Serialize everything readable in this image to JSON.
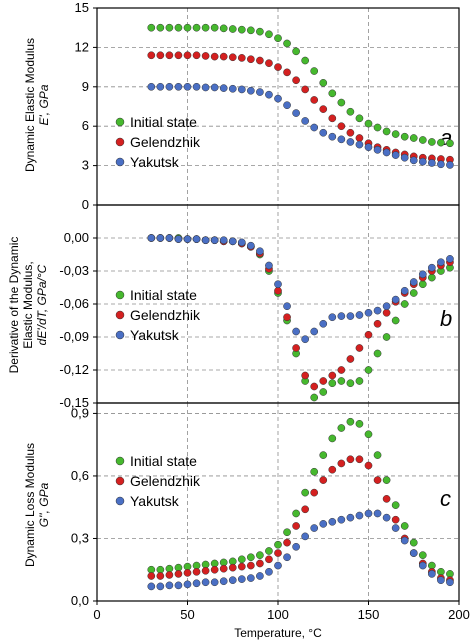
{
  "colors": {
    "initial": "#46b82e",
    "gelendzhik": "#d42020",
    "yakutsk": "#4a6fc4",
    "grid": "#8c8c8c",
    "frame": "#000000"
  },
  "chart_data": [
    {
      "type": "scatter",
      "panel_label": "a",
      "ylabel_lines": [
        "Dynamic Elastic Modulus",
        "E', GPa"
      ],
      "xlim": [
        0,
        200
      ],
      "ylim": [
        0,
        15
      ],
      "yticks": [
        "0",
        "3",
        "6",
        "9",
        "12",
        "15"
      ],
      "ytick_values": [
        0,
        3,
        6,
        9,
        12,
        15
      ],
      "grid": true,
      "legend": "left",
      "series": [
        {
          "name": "Initial state",
          "color_key": "initial",
          "x": [
            30,
            35,
            40,
            45,
            50,
            55,
            60,
            65,
            70,
            75,
            80,
            85,
            90,
            95,
            100,
            105,
            110,
            115,
            120,
            125,
            130,
            135,
            140,
            145,
            150,
            155,
            160,
            165,
            170,
            175,
            180,
            185,
            190,
            195
          ],
          "y": [
            13.5,
            13.5,
            13.5,
            13.5,
            13.5,
            13.5,
            13.5,
            13.5,
            13.45,
            13.4,
            13.35,
            13.3,
            13.2,
            13.0,
            12.7,
            12.3,
            11.7,
            11.0,
            10.2,
            9.3,
            8.5,
            7.8,
            7.1,
            6.6,
            6.2,
            5.9,
            5.6,
            5.4,
            5.2,
            5.1,
            4.95,
            4.8,
            4.75,
            4.7
          ]
        },
        {
          "name": "Gelendzhik",
          "color_key": "gelendzhik",
          "x": [
            30,
            35,
            40,
            45,
            50,
            55,
            60,
            65,
            70,
            75,
            80,
            85,
            90,
            95,
            100,
            105,
            110,
            115,
            120,
            125,
            130,
            135,
            140,
            145,
            150,
            155,
            160,
            165,
            170,
            175,
            180,
            185,
            190,
            195
          ],
          "y": [
            11.4,
            11.4,
            11.4,
            11.4,
            11.4,
            11.4,
            11.35,
            11.3,
            11.3,
            11.25,
            11.2,
            11.1,
            11.0,
            10.8,
            10.5,
            10.1,
            9.5,
            8.8,
            8.0,
            7.3,
            6.6,
            6.0,
            5.5,
            5.1,
            4.7,
            4.4,
            4.2,
            4.0,
            3.85,
            3.7,
            3.6,
            3.55,
            3.5,
            3.45
          ]
        },
        {
          "name": "Yakutsk",
          "color_key": "yakutsk",
          "x": [
            30,
            35,
            40,
            45,
            50,
            55,
            60,
            65,
            70,
            75,
            80,
            85,
            90,
            95,
            100,
            105,
            110,
            115,
            120,
            125,
            130,
            135,
            140,
            145,
            150,
            155,
            160,
            165,
            170,
            175,
            180,
            185,
            190,
            195
          ],
          "y": [
            9.0,
            9.0,
            9.0,
            9.0,
            9.0,
            9.0,
            8.95,
            8.95,
            8.9,
            8.85,
            8.8,
            8.7,
            8.6,
            8.4,
            8.1,
            7.6,
            7.0,
            6.4,
            5.9,
            5.5,
            5.2,
            5.0,
            4.8,
            4.6,
            4.4,
            4.2,
            4.0,
            3.8,
            3.6,
            3.4,
            3.3,
            3.2,
            3.1,
            3.05
          ]
        }
      ]
    },
    {
      "type": "scatter",
      "panel_label": "b",
      "ylabel_lines": [
        "Derivative of the Dynamic",
        "Elastic Modulus,",
        "dE'/dT, GPa/°C"
      ],
      "xlim": [
        0,
        200
      ],
      "ylim": [
        -0.15,
        0.03
      ],
      "yticks": [
        "0,00",
        "-0,03",
        "-0,06",
        "-0,09",
        "-0,12",
        "-0,15"
      ],
      "ytick_values": [
        0,
        -0.03,
        -0.06,
        -0.09,
        -0.12,
        -0.15
      ],
      "grid": true,
      "legend": "right",
      "series": [
        {
          "name": "Initial state",
          "color_key": "initial",
          "x": [
            30,
            35,
            40,
            45,
            50,
            55,
            60,
            65,
            70,
            75,
            80,
            85,
            90,
            95,
            100,
            105,
            110,
            115,
            120,
            125,
            130,
            135,
            140,
            145,
            150,
            155,
            160,
            165,
            170,
            175,
            180,
            185,
            190,
            195
          ],
          "y": [
            0.0,
            0.0,
            0.0,
            0.0,
            -0.001,
            -0.001,
            -0.002,
            -0.002,
            -0.003,
            -0.003,
            -0.005,
            -0.008,
            -0.015,
            -0.03,
            -0.05,
            -0.075,
            -0.105,
            -0.13,
            -0.145,
            -0.14,
            -0.132,
            -0.13,
            -0.132,
            -0.13,
            -0.12,
            -0.105,
            -0.09,
            -0.075,
            -0.06,
            -0.05,
            -0.042,
            -0.036,
            -0.03,
            -0.027
          ]
        },
        {
          "name": "Gelendzhik",
          "color_key": "gelendzhik",
          "x": [
            30,
            35,
            40,
            45,
            50,
            55,
            60,
            65,
            70,
            75,
            80,
            85,
            90,
            95,
            100,
            105,
            110,
            115,
            120,
            125,
            130,
            135,
            140,
            145,
            150,
            155,
            160,
            165,
            170,
            175,
            180,
            185,
            190,
            195
          ],
          "y": [
            0.0,
            0.0,
            0.0,
            -0.001,
            -0.001,
            -0.001,
            -0.002,
            -0.002,
            -0.003,
            -0.003,
            -0.005,
            -0.008,
            -0.014,
            -0.028,
            -0.048,
            -0.072,
            -0.1,
            -0.125,
            -0.135,
            -0.13,
            -0.125,
            -0.12,
            -0.11,
            -0.1,
            -0.088,
            -0.078,
            -0.068,
            -0.058,
            -0.05,
            -0.042,
            -0.036,
            -0.03,
            -0.025,
            -0.022
          ]
        },
        {
          "name": "Yakutsk",
          "color_key": "yakutsk",
          "x": [
            30,
            35,
            40,
            45,
            50,
            55,
            60,
            65,
            70,
            75,
            80,
            85,
            90,
            95,
            100,
            105,
            110,
            115,
            120,
            125,
            130,
            135,
            140,
            145,
            150,
            155,
            160,
            165,
            170,
            175,
            180,
            185,
            190,
            195
          ],
          "y": [
            0.0,
            0.0,
            0.0,
            -0.001,
            -0.001,
            -0.001,
            -0.002,
            -0.002,
            -0.002,
            -0.003,
            -0.004,
            -0.007,
            -0.012,
            -0.025,
            -0.042,
            -0.062,
            -0.085,
            -0.092,
            -0.085,
            -0.078,
            -0.072,
            -0.071,
            -0.071,
            -0.07,
            -0.068,
            -0.066,
            -0.062,
            -0.056,
            -0.048,
            -0.04,
            -0.033,
            -0.027,
            -0.022,
            -0.019
          ]
        }
      ]
    },
    {
      "type": "scatter",
      "panel_label": "c",
      "ylabel_lines": [
        "Dynamic Loss Modulus",
        "G'', GPa"
      ],
      "xlim": [
        0,
        200
      ],
      "ylim": [
        0,
        0.95
      ],
      "yticks": [
        "0,0",
        "0,3",
        "0,6",
        "0,9"
      ],
      "ytick_values": [
        0,
        0.3,
        0.6,
        0.9
      ],
      "xticks": [
        "0",
        "50",
        "100",
        "150",
        "200"
      ],
      "xtick_values": [
        0,
        50,
        100,
        150,
        200
      ],
      "xlabel": "Temperature, °C",
      "grid": true,
      "legend": "left",
      "series": [
        {
          "name": "Initial state",
          "color_key": "initial",
          "x": [
            30,
            35,
            40,
            45,
            50,
            55,
            60,
            65,
            70,
            75,
            80,
            85,
            90,
            95,
            100,
            105,
            110,
            115,
            120,
            125,
            130,
            135,
            140,
            145,
            150,
            155,
            160,
            165,
            170,
            175,
            180,
            185,
            190,
            195
          ],
          "y": [
            0.15,
            0.15,
            0.155,
            0.16,
            0.165,
            0.17,
            0.175,
            0.18,
            0.185,
            0.19,
            0.2,
            0.21,
            0.22,
            0.24,
            0.27,
            0.33,
            0.42,
            0.52,
            0.62,
            0.7,
            0.78,
            0.83,
            0.86,
            0.85,
            0.8,
            0.7,
            0.58,
            0.46,
            0.36,
            0.28,
            0.22,
            0.17,
            0.14,
            0.13
          ]
        },
        {
          "name": "Gelendzhik",
          "color_key": "gelendzhik",
          "x": [
            30,
            35,
            40,
            45,
            50,
            55,
            60,
            65,
            70,
            75,
            80,
            85,
            90,
            95,
            100,
            105,
            110,
            115,
            120,
            125,
            130,
            135,
            140,
            145,
            150,
            155,
            160,
            165,
            170,
            175,
            180,
            185,
            190,
            195
          ],
          "y": [
            0.12,
            0.12,
            0.125,
            0.13,
            0.135,
            0.14,
            0.145,
            0.15,
            0.155,
            0.16,
            0.165,
            0.17,
            0.18,
            0.2,
            0.23,
            0.28,
            0.36,
            0.44,
            0.52,
            0.58,
            0.63,
            0.66,
            0.68,
            0.68,
            0.65,
            0.58,
            0.49,
            0.39,
            0.3,
            0.23,
            0.18,
            0.14,
            0.11,
            0.1
          ]
        },
        {
          "name": "Yakutsk",
          "color_key": "yakutsk",
          "x": [
            30,
            35,
            40,
            45,
            50,
            55,
            60,
            65,
            70,
            75,
            80,
            85,
            90,
            95,
            100,
            105,
            110,
            115,
            120,
            125,
            130,
            135,
            140,
            145,
            150,
            155,
            160,
            165,
            170,
            175,
            180,
            185,
            190,
            195
          ],
          "y": [
            0.07,
            0.07,
            0.075,
            0.075,
            0.08,
            0.085,
            0.09,
            0.09,
            0.095,
            0.1,
            0.105,
            0.11,
            0.12,
            0.14,
            0.17,
            0.21,
            0.26,
            0.31,
            0.35,
            0.37,
            0.38,
            0.39,
            0.4,
            0.41,
            0.42,
            0.42,
            0.4,
            0.35,
            0.29,
            0.23,
            0.17,
            0.13,
            0.1,
            0.09
          ]
        }
      ]
    }
  ]
}
